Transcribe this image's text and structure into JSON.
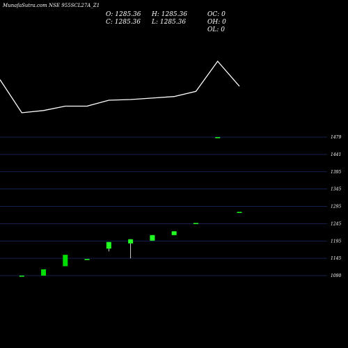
{
  "chart_data": [
    {
      "type": "line",
      "title": "MunafaSutra.com NSE 955SCL27A_Z1",
      "info": {
        "O": "O: 1285.36",
        "H": "H: 1285.36",
        "OC": "OC: 0",
        "C": "C: 1285.36",
        "L": "L: 1285.36",
        "OH": "OH: 0",
        "OL": "OL: 0"
      },
      "x": [
        0,
        1,
        2,
        3,
        4,
        5,
        6,
        7,
        8,
        9,
        10,
        11
      ],
      "values": [
        1470,
        1425,
        1428,
        1434,
        1434,
        1442,
        1443,
        1445,
        1447,
        1454,
        1495,
        1461
      ],
      "line_color": "#ffffff"
    },
    {
      "type": "candlestick",
      "yticks": [
        "1479",
        "1441",
        "1395",
        "1345",
        "1295",
        "1245",
        "1195",
        "1145",
        "1090"
      ],
      "candles": [
        {
          "o": 1090,
          "h": 1090,
          "l": 1090,
          "c": 1090,
          "color": "#22ff22"
        },
        {
          "o": 1090,
          "h": 1110,
          "l": 1090,
          "c": 1110,
          "color": "#00dd00"
        },
        {
          "o": 1120,
          "h": 1155,
          "l": 1120,
          "c": 1155,
          "color": "#00dd00"
        },
        {
          "o": 1143,
          "h": 1143,
          "l": 1143,
          "c": 1143,
          "color": "#22ff22"
        },
        {
          "o": 1173,
          "h": 1192,
          "l": 1165,
          "c": 1192,
          "color": "#22ff22"
        },
        {
          "o": 1188,
          "h": 1200,
          "l": 1145,
          "c": 1200,
          "color": "#22ff22"
        },
        {
          "o": 1196,
          "h": 1212,
          "l": 1196,
          "c": 1212,
          "color": "#22ff22"
        },
        {
          "o": 1212,
          "h": 1223,
          "l": 1212,
          "c": 1223,
          "color": "#22ff22"
        },
        {
          "o": 1247,
          "h": 1247,
          "l": 1247,
          "c": 1247,
          "color": "#22ff22"
        },
        {
          "o": 1479,
          "h": 1479,
          "l": 1479,
          "c": 1479,
          "color": "#22ff22"
        },
        {
          "o": 1279,
          "h": 1279,
          "l": 1279,
          "c": 1279,
          "color": "#22ff22"
        }
      ],
      "x_positions": [
        1,
        2,
        3,
        4,
        5,
        6,
        7,
        8,
        9,
        10,
        11
      ],
      "grid": true,
      "grid_color": "#1a2a66"
    }
  ]
}
